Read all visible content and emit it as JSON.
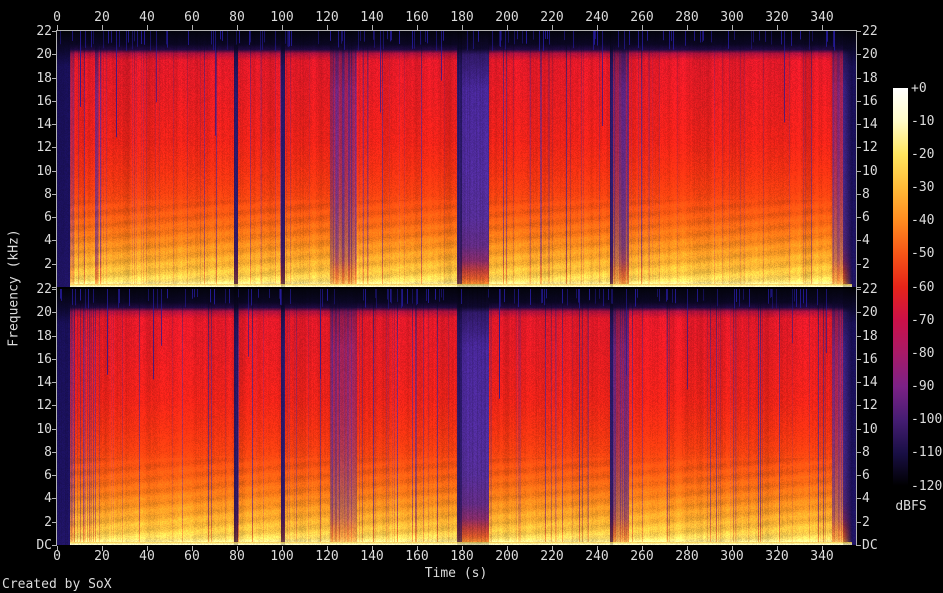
{
  "credit": "Created by SoX",
  "colorbar": {
    "unit": "dBFS",
    "tick_labels": [
      "+0",
      "-10",
      "-20",
      "-30",
      "-40",
      "-50",
      "-60",
      "-70",
      "-80",
      "-90",
      "-100",
      "-110",
      "-120"
    ],
    "gradient": [
      "#ffffff",
      "#fffbc8",
      "#ffe55e",
      "#ffbb38",
      "#ff8c20",
      "#f55517",
      "#e52419",
      "#cc1048",
      "#a81a68",
      "#7c2186",
      "#461d73",
      "#190f45",
      "#000000"
    ]
  },
  "chart_data": {
    "type": "heatmap",
    "subtype": "audio-spectrogram",
    "channels": 2,
    "xlabel": "Time (s)",
    "ylabel": "Frequency (kHz)",
    "x_ticks": [
      0,
      20,
      40,
      60,
      80,
      100,
      120,
      140,
      160,
      180,
      200,
      220,
      240,
      260,
      280,
      300,
      320,
      340
    ],
    "x_range_s": [
      0,
      355
    ],
    "y_tick_labels": [
      "22",
      "20",
      "18",
      "16",
      "14",
      "12",
      "10",
      "8",
      "6",
      "4",
      "2",
      "DC"
    ],
    "y_range_khz": [
      0,
      22
    ],
    "z_range_dbfs": [
      0,
      -120
    ],
    "content_cutoff_khz": 20.2,
    "segments": [
      {
        "t0": 0,
        "t1": 5.5,
        "type": "silence"
      },
      {
        "t0": 5.5,
        "t1": 19,
        "type": "music",
        "stripes": 0.3
      },
      {
        "t0": 19,
        "t1": 78.5,
        "type": "music"
      },
      {
        "t0": 78.5,
        "t1": 80,
        "type": "gap"
      },
      {
        "t0": 80,
        "t1": 99.5,
        "type": "music"
      },
      {
        "t0": 99.5,
        "t1": 101,
        "type": "gap"
      },
      {
        "t0": 101,
        "t1": 121,
        "type": "music"
      },
      {
        "t0": 121,
        "t1": 133,
        "type": "quiet",
        "stripes": 0.45
      },
      {
        "t0": 133,
        "t1": 177.5,
        "type": "music"
      },
      {
        "t0": 177.5,
        "t1": 179.5,
        "type": "gap"
      },
      {
        "t0": 179.5,
        "t1": 191.5,
        "type": "break"
      },
      {
        "t0": 191.5,
        "t1": 245.5,
        "type": "music"
      },
      {
        "t0": 245.5,
        "t1": 247,
        "type": "gap"
      },
      {
        "t0": 247,
        "t1": 254,
        "type": "quiet",
        "stripes": 0.5
      },
      {
        "t0": 254,
        "t1": 344,
        "type": "music"
      },
      {
        "t0": 344,
        "t1": 349,
        "type": "quiet",
        "stripes": 0.55
      },
      {
        "t0": 349,
        "t1": 353,
        "type": "fade"
      },
      {
        "t0": 353,
        "t1": 355,
        "type": "silence"
      }
    ],
    "render": {
      "axis_color": "#b2b2b2",
      "text_color": "#dcdcdc",
      "background": "#000000",
      "blue_spike_color": "#241a96",
      "profiles": {
        "music": [
          [
            22,
            [
              4,
              4,
              14
            ]
          ],
          [
            20.9,
            [
              10,
              6,
              34
            ]
          ],
          [
            20.45,
            [
              30,
              10,
              64
            ]
          ],
          [
            20.1,
            [
              170,
              16,
              60
            ]
          ],
          [
            19.5,
            [
              222,
              24,
              40
            ]
          ],
          [
            16,
            [
              226,
              28,
              32
            ]
          ],
          [
            12.5,
            [
              233,
              34,
              24
            ]
          ],
          [
            10,
            [
              238,
              48,
              18
            ]
          ],
          [
            8,
            [
              243,
              64,
              16
            ]
          ],
          [
            6,
            [
              248,
              92,
              18
            ]
          ],
          [
            4.5,
            [
              250,
              118,
              22
            ]
          ],
          [
            3.2,
            [
              252,
              148,
              32
            ]
          ],
          [
            2,
            [
              253,
              176,
              48
            ]
          ],
          [
            1.1,
            [
              253,
              200,
              68
            ]
          ],
          [
            0.5,
            [
              254,
              222,
              100
            ]
          ],
          [
            0.15,
            [
              255,
              242,
              170
            ]
          ],
          [
            0,
            [
              255,
              252,
              210
            ]
          ]
        ],
        "break": [
          [
            22,
            [
              4,
              4,
              14
            ]
          ],
          [
            20.5,
            [
              14,
              8,
              44
            ]
          ],
          [
            20,
            [
              46,
              24,
              100
            ]
          ],
          [
            17,
            [
              70,
              38,
              148
            ]
          ],
          [
            10,
            [
              78,
              42,
              152
            ]
          ],
          [
            6,
            [
              82,
              44,
              146
            ]
          ],
          [
            3.5,
            [
              95,
              42,
              128
            ]
          ],
          [
            2.2,
            [
              130,
              42,
              100
            ]
          ],
          [
            1.4,
            [
              180,
              58,
              56
            ]
          ],
          [
            0.7,
            [
              212,
              86,
              40
            ]
          ],
          [
            0.25,
            [
              232,
              130,
              46
            ]
          ],
          [
            0,
            [
              250,
              200,
              96
            ]
          ]
        ],
        "silence": [
          [
            22,
            [
              3,
              3,
              10
            ]
          ],
          [
            20.4,
            [
              12,
              8,
              46
            ]
          ],
          [
            19,
            [
              24,
              15,
              86
            ]
          ],
          [
            4,
            [
              28,
              17,
              94
            ]
          ],
          [
            0,
            [
              32,
              20,
              100
            ]
          ]
        ]
      }
    }
  }
}
